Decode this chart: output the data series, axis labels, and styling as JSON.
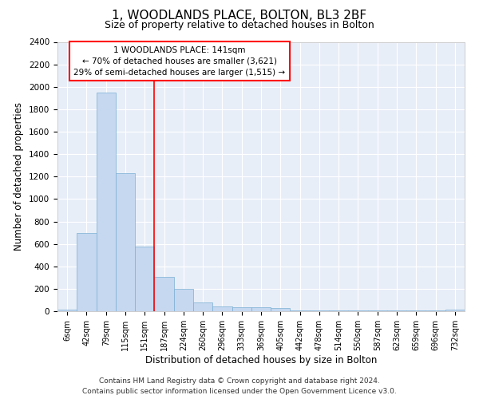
{
  "title_line1": "1, WOODLANDS PLACE, BOLTON, BL3 2BF",
  "title_line2": "Size of property relative to detached houses in Bolton",
  "xlabel": "Distribution of detached houses by size in Bolton",
  "ylabel": "Number of detached properties",
  "bar_color": "#c5d8f0",
  "bar_edge_color": "#7bafd4",
  "background_color": "#e8eef8",
  "grid_color": "#ffffff",
  "fig_background": "#ffffff",
  "categories": [
    "6sqm",
    "42sqm",
    "79sqm",
    "115sqm",
    "151sqm",
    "187sqm",
    "224sqm",
    "260sqm",
    "296sqm",
    "333sqm",
    "369sqm",
    "405sqm",
    "442sqm",
    "478sqm",
    "514sqm",
    "550sqm",
    "587sqm",
    "623sqm",
    "659sqm",
    "696sqm",
    "732sqm"
  ],
  "values": [
    15,
    700,
    1950,
    1230,
    575,
    305,
    200,
    80,
    45,
    38,
    35,
    30,
    5,
    5,
    5,
    5,
    5,
    5,
    5,
    5,
    15
  ],
  "ylim": [
    0,
    2400
  ],
  "yticks": [
    0,
    200,
    400,
    600,
    800,
    1000,
    1200,
    1400,
    1600,
    1800,
    2000,
    2200,
    2400
  ],
  "red_line_x": 4.5,
  "annotation_title": "1 WOODLANDS PLACE: 141sqm",
  "annotation_line1": "← 70% of detached houses are smaller (3,621)",
  "annotation_line2": "29% of semi-detached houses are larger (1,515) →",
  "footer_line1": "Contains HM Land Registry data © Crown copyright and database right 2024.",
  "footer_line2": "Contains public sector information licensed under the Open Government Licence v3.0.",
  "title_fontsize": 11,
  "subtitle_fontsize": 9,
  "axis_label_fontsize": 8.5,
  "tick_fontsize": 7.5,
  "annotation_fontsize": 7.5,
  "footer_fontsize": 6.5
}
